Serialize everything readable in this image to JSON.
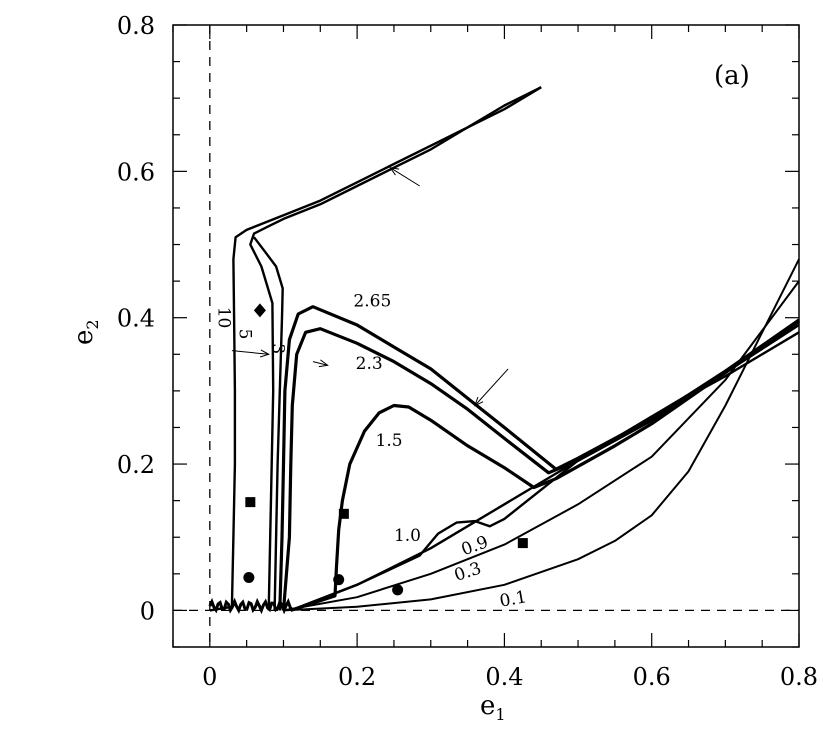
{
  "chart_data": {
    "type": "line",
    "panel_label": "(a)",
    "xlabel": "e",
    "xlabel_sub": "1",
    "ylabel": "e",
    "ylabel_sub": "2",
    "xlim": [
      -0.05,
      0.8
    ],
    "ylim": [
      -0.05,
      0.8
    ],
    "x_ticks": [
      "0",
      "0.2",
      "0.4",
      "0.6",
      "0.8"
    ],
    "x_tick_values": [
      0,
      0.2,
      0.4,
      0.6,
      0.8
    ],
    "y_ticks": [
      "0",
      "0.2",
      "0.4",
      "0.6",
      "0.8"
    ],
    "y_tick_values": [
      0,
      0.2,
      0.4,
      0.6,
      0.8
    ],
    "grid": false,
    "reference_lines": [
      {
        "orientation": "vertical",
        "value": 0,
        "style": "dashed"
      },
      {
        "orientation": "horizontal",
        "value": 0,
        "style": "dashed"
      }
    ],
    "series": [
      {
        "name": "0.1",
        "width": 2,
        "points": [
          [
            0.1,
            0
          ],
          [
            0.2,
            0.005
          ],
          [
            0.3,
            0.015
          ],
          [
            0.4,
            0.035
          ],
          [
            0.5,
            0.07
          ],
          [
            0.55,
            0.095
          ],
          [
            0.6,
            0.13
          ],
          [
            0.65,
            0.19
          ],
          [
            0.7,
            0.28
          ],
          [
            0.75,
            0.38
          ],
          [
            0.8,
            0.48
          ]
        ]
      },
      {
        "name": "0.3",
        "width": 2,
        "points": [
          [
            0.1,
            0
          ],
          [
            0.2,
            0.018
          ],
          [
            0.3,
            0.05
          ],
          [
            0.4,
            0.09
          ],
          [
            0.5,
            0.145
          ],
          [
            0.6,
            0.21
          ],
          [
            0.7,
            0.315
          ],
          [
            0.8,
            0.45
          ]
        ]
      },
      {
        "name": "0.9",
        "width": 2.4,
        "points": [
          [
            0.11,
            0
          ],
          [
            0.2,
            0.035
          ],
          [
            0.3,
            0.085
          ],
          [
            0.4,
            0.145
          ],
          [
            0.5,
            0.205
          ],
          [
            0.6,
            0.265
          ],
          [
            0.7,
            0.32
          ],
          [
            0.8,
            0.38
          ]
        ]
      },
      {
        "name": "1.0",
        "width": 2.4,
        "points": [
          [
            0.11,
            0
          ],
          [
            0.2,
            0.035
          ],
          [
            0.285,
            0.075
          ],
          [
            0.31,
            0.105
          ],
          [
            0.335,
            0.12
          ],
          [
            0.36,
            0.122
          ],
          [
            0.38,
            0.115
          ],
          [
            0.4,
            0.125
          ],
          [
            0.5,
            0.205
          ],
          [
            0.6,
            0.265
          ],
          [
            0.7,
            0.325
          ],
          [
            0.8,
            0.39
          ]
        ]
      },
      {
        "name": "1.5",
        "width": 3.2,
        "points": [
          [
            0.11,
            0
          ],
          [
            0.17,
            0.02
          ],
          [
            0.172,
            0.06
          ],
          [
            0.175,
            0.11
          ],
          [
            0.18,
            0.15
          ],
          [
            0.19,
            0.2
          ],
          [
            0.21,
            0.245
          ],
          [
            0.23,
            0.27
          ],
          [
            0.25,
            0.28
          ],
          [
            0.27,
            0.278
          ],
          [
            0.3,
            0.26
          ],
          [
            0.35,
            0.225
          ],
          [
            0.4,
            0.195
          ],
          [
            0.44,
            0.168
          ],
          [
            0.47,
            0.18
          ],
          [
            0.55,
            0.225
          ],
          [
            0.6,
            0.255
          ],
          [
            0.7,
            0.325
          ],
          [
            0.8,
            0.395
          ]
        ]
      },
      {
        "name": "2.3",
        "width": 3.2,
        "points": [
          [
            0.1,
            0.0
          ],
          [
            0.108,
            0.1
          ],
          [
            0.11,
            0.2
          ],
          [
            0.112,
            0.28
          ],
          [
            0.118,
            0.35
          ],
          [
            0.13,
            0.38
          ],
          [
            0.15,
            0.385
          ],
          [
            0.2,
            0.365
          ],
          [
            0.25,
            0.34
          ],
          [
            0.3,
            0.31
          ],
          [
            0.35,
            0.275
          ],
          [
            0.4,
            0.235
          ],
          [
            0.46,
            0.188
          ],
          [
            0.5,
            0.205
          ],
          [
            0.6,
            0.26
          ],
          [
            0.7,
            0.325
          ],
          [
            0.8,
            0.395
          ]
        ]
      },
      {
        "name": "2.65",
        "width": 3.2,
        "points": [
          [
            0.095,
            0.0
          ],
          [
            0.098,
            0.1
          ],
          [
            0.1,
            0.2
          ],
          [
            0.102,
            0.3
          ],
          [
            0.108,
            0.37
          ],
          [
            0.12,
            0.405
          ],
          [
            0.14,
            0.415
          ],
          [
            0.2,
            0.39
          ],
          [
            0.25,
            0.36
          ],
          [
            0.3,
            0.33
          ],
          [
            0.35,
            0.29
          ],
          [
            0.4,
            0.25
          ],
          [
            0.47,
            0.193
          ],
          [
            0.5,
            0.208
          ],
          [
            0.6,
            0.262
          ],
          [
            0.7,
            0.327
          ],
          [
            0.8,
            0.397
          ]
        ]
      },
      {
        "name": "3",
        "width": 2.4,
        "points": [
          [
            0.088,
            0.0
          ],
          [
            0.09,
            0.1
          ],
          [
            0.092,
            0.2
          ],
          [
            0.095,
            0.3
          ],
          [
            0.098,
            0.4
          ],
          [
            0.099,
            0.44
          ],
          [
            0.09,
            0.47
          ],
          [
            0.075,
            0.49
          ],
          [
            0.06,
            0.51
          ]
        ]
      },
      {
        "name": "5",
        "width": 2.4,
        "points": [
          [
            0.08,
            0.0
          ],
          [
            0.082,
            0.1
          ],
          [
            0.084,
            0.2
          ],
          [
            0.086,
            0.3
          ],
          [
            0.085,
            0.42
          ],
          [
            0.07,
            0.47
          ],
          [
            0.055,
            0.5
          ],
          [
            0.06,
            0.515
          ],
          [
            0.08,
            0.525
          ],
          [
            0.1,
            0.535
          ],
          [
            0.15,
            0.555
          ],
          [
            0.2,
            0.58
          ],
          [
            0.25,
            0.605
          ],
          [
            0.3,
            0.63
          ],
          [
            0.35,
            0.66
          ],
          [
            0.4,
            0.685
          ],
          [
            0.45,
            0.715
          ]
        ]
      },
      {
        "name": "10",
        "width": 2.4,
        "points": [
          [
            0.0,
            0.0
          ],
          [
            0.03,
            0.005
          ],
          [
            0.032,
            0.1
          ],
          [
            0.034,
            0.2
          ],
          [
            0.034,
            0.3
          ],
          [
            0.033,
            0.4
          ],
          [
            0.032,
            0.48
          ],
          [
            0.035,
            0.51
          ],
          [
            0.05,
            0.52
          ],
          [
            0.1,
            0.54
          ],
          [
            0.15,
            0.56
          ],
          [
            0.2,
            0.585
          ],
          [
            0.25,
            0.61
          ],
          [
            0.3,
            0.635
          ],
          [
            0.35,
            0.66
          ],
          [
            0.4,
            0.69
          ],
          [
            0.45,
            0.715
          ]
        ]
      }
    ],
    "markers": [
      {
        "shape": "circle",
        "x": 0.053,
        "y": 0.045
      },
      {
        "shape": "square",
        "x": 0.055,
        "y": 0.148
      },
      {
        "shape": "diamond",
        "x": 0.068,
        "y": 0.41
      },
      {
        "shape": "circle",
        "x": 0.175,
        "y": 0.042
      },
      {
        "shape": "square",
        "x": 0.182,
        "y": 0.132
      },
      {
        "shape": "circle",
        "x": 0.255,
        "y": 0.028
      },
      {
        "shape": "square",
        "x": 0.425,
        "y": 0.092
      }
    ],
    "curve_labels": [
      {
        "text": "10",
        "x": 0.012,
        "y": 0.415,
        "rotate": 90
      },
      {
        "text": "5",
        "x": 0.04,
        "y": 0.385,
        "rotate": 90
      },
      {
        "text": "3",
        "x": 0.085,
        "y": 0.365,
        "rotate": 90
      },
      {
        "text": "2.65",
        "x": 0.195,
        "y": 0.415,
        "rotate": 0
      },
      {
        "text": "2.3",
        "x": 0.198,
        "y": 0.33,
        "rotate": 0
      },
      {
        "text": "1.5",
        "x": 0.225,
        "y": 0.225,
        "rotate": 0
      },
      {
        "text": "1.0",
        "x": 0.25,
        "y": 0.095,
        "rotate": 0
      },
      {
        "text": "0.9",
        "x": 0.345,
        "y": 0.075,
        "rotate": -20
      },
      {
        "text": "0.3",
        "x": 0.335,
        "y": 0.04,
        "rotate": -18
      },
      {
        "text": "0.1",
        "x": 0.395,
        "y": 0.005,
        "rotate": -10
      }
    ],
    "arrows": [
      {
        "from": [
          0.285,
          0.58
        ],
        "to": [
          0.245,
          0.605
        ]
      },
      {
        "from": [
          0.405,
          0.33
        ],
        "to": [
          0.36,
          0.28
        ]
      },
      {
        "from": [
          0.03,
          0.355
        ],
        "to": [
          0.08,
          0.35
        ]
      },
      {
        "from": [
          0.14,
          0.34
        ],
        "to": [
          0.16,
          0.335
        ]
      }
    ]
  }
}
